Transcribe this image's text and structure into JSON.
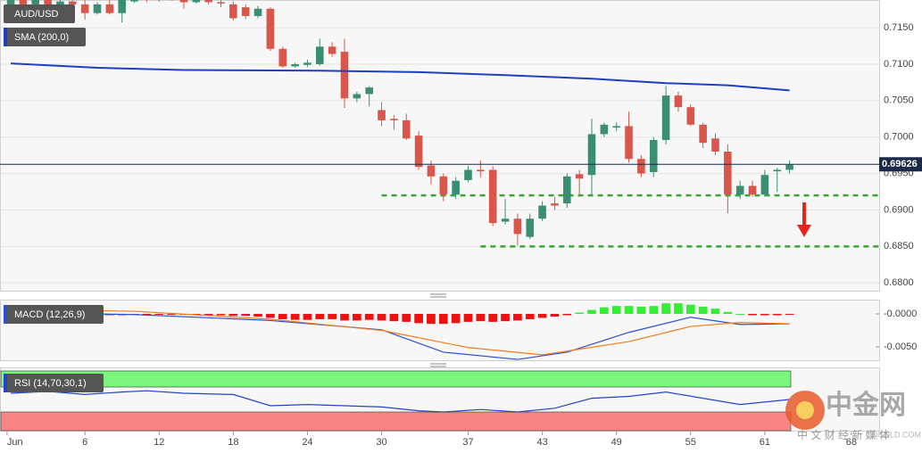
{
  "chart_data": [
    {
      "type": "candlestick",
      "title": "AUD/USD",
      "xlim": [
        -0.87,
        70.25
      ],
      "ylim": [
        0.6788,
        0.7188
      ],
      "yticks": [
        {
          "value": 0.715,
          "label": "0.7150"
        },
        {
          "value": 0.71,
          "label": "0.7100"
        },
        {
          "value": 0.705,
          "label": "0.7050"
        },
        {
          "value": 0.7,
          "label": "0.7000"
        },
        {
          "value": 0.695,
          "label": "0.6950"
        },
        {
          "value": 0.69,
          "label": "0.6900"
        },
        {
          "value": 0.685,
          "label": "0.6850"
        },
        {
          "value": 0.68,
          "label": "0.6800"
        }
      ],
      "grid": true,
      "up_color": "#3a8f72",
      "down_color": "#d9574a",
      "open": [
        0.718,
        0.7188,
        0.7182,
        0.7188,
        0.718,
        0.7186,
        0.7182,
        0.717,
        0.7182,
        0.717,
        0.7186,
        0.719,
        0.7188,
        0.7192,
        0.7188,
        0.7185,
        0.7188,
        0.7185,
        0.7182,
        0.7178,
        0.7166,
        0.7176,
        0.7121,
        0.7097,
        0.7099,
        0.71,
        0.7124,
        0.7117,
        0.7053,
        0.7059,
        0.7037,
        0.7025,
        0.7023,
        0.7002,
        0.6961,
        0.6946,
        0.6921,
        0.6941,
        0.6955,
        0.6955,
        0.6884,
        0.6888,
        0.6863,
        0.6888,
        0.6909,
        0.6909,
        0.6949,
        0.6948,
        0.7004,
        0.7013,
        0.7015,
        0.697,
        0.6952,
        0.6996,
        0.7057,
        0.7041,
        0.7017,
        0.6998,
        0.698,
        0.6921,
        0.6933,
        0.6921,
        0.6953,
        0.6955
      ],
      "high": [
        0.719,
        0.7192,
        0.7192,
        0.719,
        0.719,
        0.719,
        0.7188,
        0.7185,
        0.7188,
        0.7192,
        0.7195,
        0.7196,
        0.7196,
        0.7196,
        0.7192,
        0.7194,
        0.7192,
        0.719,
        0.7186,
        0.7182,
        0.718,
        0.7178,
        0.7124,
        0.7102,
        0.7106,
        0.7135,
        0.713,
        0.7135,
        0.7062,
        0.707,
        0.7048,
        0.703,
        0.7032,
        0.7008,
        0.6968,
        0.695,
        0.6945,
        0.696,
        0.6968,
        0.696,
        0.6915,
        0.6895,
        0.6895,
        0.6912,
        0.6918,
        0.695,
        0.6955,
        0.7025,
        0.702,
        0.702,
        0.7035,
        0.6975,
        0.7,
        0.707,
        0.7062,
        0.7045,
        0.702,
        0.7005,
        0.699,
        0.694,
        0.694,
        0.6955,
        0.6958,
        0.6968
      ],
      "low": [
        0.7175,
        0.7178,
        0.718,
        0.7176,
        0.7178,
        0.7175,
        0.7161,
        0.7168,
        0.7168,
        0.7157,
        0.7184,
        0.7185,
        0.7186,
        0.7187,
        0.7176,
        0.7183,
        0.7182,
        0.7178,
        0.716,
        0.7162,
        0.7163,
        0.7118,
        0.7095,
        0.7095,
        0.7096,
        0.7098,
        0.711,
        0.704,
        0.7048,
        0.7042,
        0.7015,
        0.701,
        0.6996,
        0.6955,
        0.6935,
        0.6912,
        0.6915,
        0.6938,
        0.6945,
        0.6878,
        0.688,
        0.6851,
        0.686,
        0.6885,
        0.69,
        0.6903,
        0.692,
        0.692,
        0.7,
        0.7008,
        0.6965,
        0.6945,
        0.6945,
        0.699,
        0.7035,
        0.7015,
        0.6985,
        0.6975,
        0.6895,
        0.6915,
        0.6918,
        0.6918,
        0.6925,
        0.695
      ],
      "close": [
        0.7188,
        0.7182,
        0.7188,
        0.718,
        0.7186,
        0.7182,
        0.717,
        0.7182,
        0.717,
        0.7188,
        0.719,
        0.7188,
        0.7192,
        0.719,
        0.7185,
        0.719,
        0.7185,
        0.7184,
        0.7163,
        0.7166,
        0.7176,
        0.7121,
        0.7097,
        0.71,
        0.7102,
        0.7124,
        0.7114,
        0.7053,
        0.7059,
        0.7068,
        0.7023,
        0.7023,
        0.6998,
        0.6959,
        0.6946,
        0.6921,
        0.694,
        0.6955,
        0.6953,
        0.6882,
        0.6888,
        0.6867,
        0.6888,
        0.6906,
        0.6906,
        0.6946,
        0.6943,
        0.7004,
        0.7017,
        0.7015,
        0.697,
        0.695,
        0.6996,
        0.7057,
        0.7041,
        0.7017,
        0.6992,
        0.698,
        0.6921,
        0.6933,
        0.6921,
        0.6948,
        0.6955,
        0.6962
      ],
      "sma": {
        "name": "SMA (200,0)",
        "color": "#1f3fbf",
        "x": [
          0,
          7,
          14,
          25,
          33,
          40,
          47,
          53,
          58,
          63
        ],
        "values": [
          0.7101,
          0.7095,
          0.7092,
          0.7091,
          0.7089,
          0.7085,
          0.708,
          0.7074,
          0.7071,
          0.7064
        ]
      },
      "last_price": 0.69626,
      "levels": [
        {
          "value": 0.692,
          "start": 30,
          "color": "#3aa635"
        },
        {
          "value": 0.685,
          "start": 38,
          "color": "#3aa635"
        }
      ]
    },
    {
      "type": "macd",
      "title": "MACD (12,26,9)",
      "xlim": [
        -0.87,
        70.25
      ],
      "ylim": [
        -0.00716,
        0.00203
      ],
      "yticks": [
        {
          "value": 0,
          "label": "-0.0000"
        },
        {
          "value": -0.005,
          "label": "-0.0050"
        }
      ],
      "histogram": {
        "up_color": "#33ee33",
        "down_color": "#ee1111",
        "values": [
          -0.0001,
          -0.0001,
          -0.0001,
          0,
          0,
          -0.0001,
          -0.0002,
          -0.0003,
          -0.0002,
          -0.0002,
          -0.0001,
          -0.0001,
          -0.0001,
          -0.0001,
          -0.0001,
          -0.0001,
          -0.0002,
          -0.0002,
          -0.0003,
          -0.0003,
          -0.0004,
          -0.0006,
          -0.0008,
          -0.0009,
          -0.0009,
          -0.0008,
          -0.0008,
          -0.001,
          -0.001,
          -0.0009,
          -0.001,
          -0.0011,
          -0.0012,
          -0.0014,
          -0.0015,
          -0.0015,
          -0.0014,
          -0.0012,
          -0.0011,
          -0.0012,
          -0.0011,
          -0.001,
          -0.0008,
          -0.0006,
          -0.0004,
          -0.0002,
          0.0002,
          0.0006,
          0.001,
          0.0012,
          0.0012,
          0.0011,
          0.0012,
          0.0016,
          0.0016,
          0.0014,
          0.0011,
          0.0008,
          0.0003,
          0,
          -0.0002,
          -0.0002,
          -0.0002,
          -0.0001
        ]
      },
      "series": [
        {
          "color": "#2b4fd6",
          "x": [
            0,
            10,
            21,
            30,
            35,
            41,
            45,
            50,
            55,
            59,
            63
          ],
          "values": [
            0.0002,
            -0.0001,
            -0.001,
            -0.0024,
            -0.0058,
            -0.0069,
            -0.0058,
            -0.0028,
            -0.0005,
            -0.0016,
            -0.0015
          ]
        },
        {
          "color": "#f07d1a",
          "x": [
            0,
            10,
            21,
            30,
            37,
            43,
            50,
            55,
            59,
            63
          ],
          "values": [
            0.0007,
            0.0004,
            -0.0008,
            -0.0025,
            -0.0051,
            -0.0062,
            -0.0042,
            -0.0019,
            -0.0013,
            -0.0015
          ]
        }
      ]
    },
    {
      "type": "rsi",
      "title": "RSI (14,70,30,1)",
      "xlim": [
        -0.87,
        70.25
      ],
      "ylim": [
        0,
        100
      ],
      "overbought": 70,
      "oversold": 30,
      "color": "#2244cc",
      "x": [
        0,
        3,
        6,
        9,
        11,
        14,
        18,
        21,
        24,
        27,
        30,
        33,
        35,
        38,
        41,
        44,
        47,
        50,
        53,
        56,
        59,
        63
      ],
      "values": [
        60,
        63,
        58,
        62,
        64,
        60,
        58,
        40,
        42,
        40,
        38,
        32,
        30,
        34,
        30,
        36,
        52,
        55,
        62,
        52,
        42,
        50
      ],
      "xticks": [
        {
          "value": -0.3,
          "label": "Jun"
        },
        6,
        12,
        18,
        24,
        30,
        37,
        43,
        49,
        55,
        61,
        68
      ]
    }
  ],
  "watermark": {
    "name": "中金网",
    "url": "CNGOLD.COM",
    "tagline": "中 文 财 经 新 媒 体"
  }
}
